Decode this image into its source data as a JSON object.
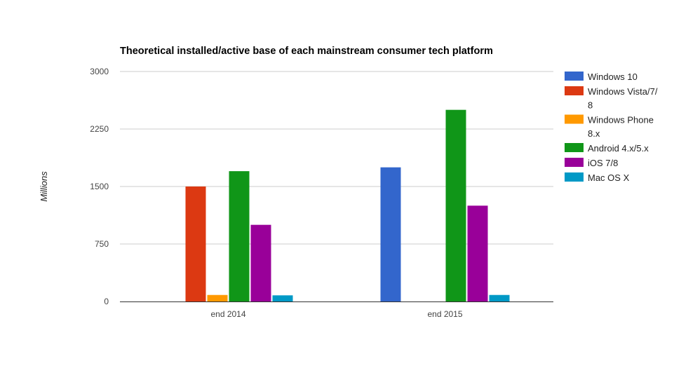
{
  "chart_data": {
    "type": "bar",
    "title": "Theoretical installed/active base of each mainstream consumer tech platform",
    "xlabel": "",
    "ylabel": "Millions",
    "categories": [
      "end 2014",
      "end 2015"
    ],
    "ylim": [
      0,
      3000
    ],
    "yticks": [
      0,
      750,
      1500,
      2250,
      3000
    ],
    "grid": true,
    "legend_position": "right",
    "series": [
      {
        "name": "Windows 10",
        "color": "#3366cc",
        "values": [
          0,
          1750
        ],
        "legend_lines": [
          "Windows 10"
        ]
      },
      {
        "name": "Windows Vista/7/8",
        "color": "#dc3912",
        "values": [
          1500,
          0
        ],
        "legend_lines": [
          "Windows Vista/7/",
          "8"
        ]
      },
      {
        "name": "Windows Phone 8.x",
        "color": "#ff9900",
        "values": [
          85,
          0
        ],
        "legend_lines": [
          "Windows Phone",
          "8.x"
        ]
      },
      {
        "name": "Android 4.x/5.x",
        "color": "#109618",
        "values": [
          1700,
          2500
        ],
        "legend_lines": [
          "Android 4.x/5.x"
        ]
      },
      {
        "name": "iOS 7/8",
        "color": "#990099",
        "values": [
          1000,
          1250
        ],
        "legend_lines": [
          "iOS 7/8"
        ]
      },
      {
        "name": "Mac OS X",
        "color": "#0099c6",
        "values": [
          80,
          85
        ],
        "legend_lines": [
          "Mac OS X"
        ]
      }
    ]
  }
}
